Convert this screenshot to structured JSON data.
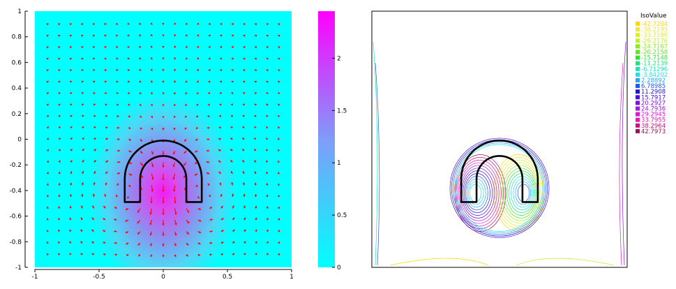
{
  "chart_data": [
    {
      "type": "heatmap",
      "subtype": "vector-field",
      "title": "",
      "xlabel": "",
      "ylabel": "",
      "xlim": [
        -1,
        1
      ],
      "ylim": [
        -1,
        1
      ],
      "x_ticks": [
        -1,
        -0.5,
        0,
        0.5,
        1
      ],
      "x_tick_labels": [
        "-1",
        "-0.5",
        "0",
        "0.5",
        "1"
      ],
      "y_ticks": [
        1,
        0.8,
        0.6,
        0.4,
        0.2,
        0,
        -0.2,
        -0.4,
        -0.6,
        -0.8,
        -1
      ],
      "y_tick_labels": [
        "1",
        "0.8",
        "0.6",
        "0.4",
        "0.2",
        "0",
        "-0.2",
        "-0.4",
        "-0.6",
        "-0.8",
        "-1"
      ],
      "colorbar": {
        "range": [
          0,
          2.45
        ],
        "ticks": [
          0,
          0.5,
          1,
          1.5,
          2
        ],
        "tick_labels": [
          "0",
          "0.5",
          "1",
          "1.5",
          "2"
        ],
        "colors": [
          "#00ffff",
          "#ff00ff"
        ]
      },
      "field_peak": {
        "x": 0,
        "y": -0.42,
        "value": 2.4
      },
      "arrow_color": "#ff0000",
      "interface_color": "#000000",
      "grid": false
    },
    {
      "type": "contour",
      "title": "",
      "xlim": [
        -1,
        1
      ],
      "ylim": [
        -1,
        1
      ],
      "legend_title": "IsoValue",
      "legend_position": "right",
      "levels": [
        {
          "label": "-42.7204",
          "color": "#ffd700"
        },
        {
          "label": "-38.2195",
          "color": "#f2e536"
        },
        {
          "label": "-33.7186",
          "color": "#ddef26"
        },
        {
          "label": "-29.2176",
          "color": "#bff21f"
        },
        {
          "label": "-24.7167",
          "color": "#8cea1a"
        },
        {
          "label": "-20.2158",
          "color": "#5ee81e"
        },
        {
          "label": "-15.7148",
          "color": "#2ee42e"
        },
        {
          "label": "-11.2139",
          "color": "#1ce878"
        },
        {
          "label": "-6.71296",
          "color": "#19e6c0"
        },
        {
          "label": "-3.84202",
          "color": "#20e0ee"
        },
        {
          "label": "2.28892",
          "color": "#2aa6f0"
        },
        {
          "label": "6.78985",
          "color": "#2059ee"
        },
        {
          "label": "11.2908",
          "color": "#1b16e0"
        },
        {
          "label": "15.7917",
          "color": "#4a10e2"
        },
        {
          "label": "20.2927",
          "color": "#7a12e6"
        },
        {
          "label": "24.7936",
          "color": "#a616e0"
        },
        {
          "label": "29.2945",
          "color": "#d61cd6"
        },
        {
          "label": "33.7955",
          "color": "#e61bb0"
        },
        {
          "label": "38.2964",
          "color": "#c81480"
        },
        {
          "label": "42.7973",
          "color": "#a0105a"
        }
      ]
    }
  ]
}
